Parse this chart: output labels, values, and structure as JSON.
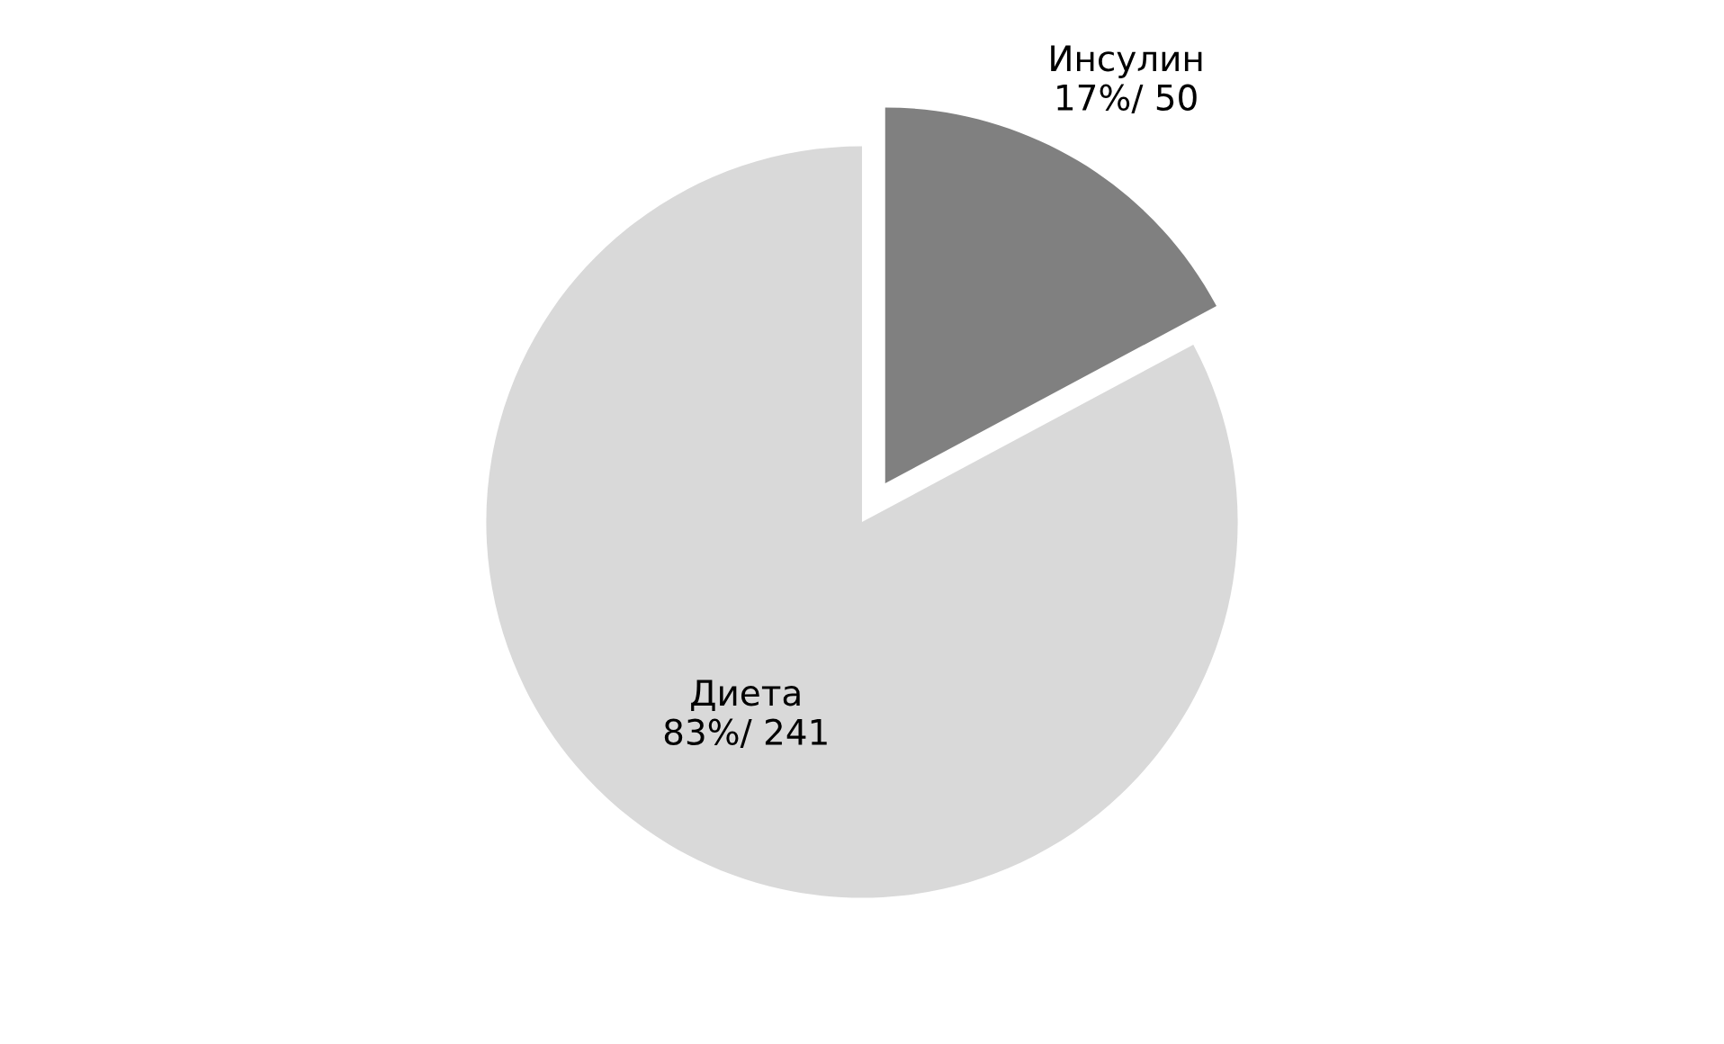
{
  "chart_data": {
    "type": "pie",
    "categories": [
      "Инсулин",
      "Диета"
    ],
    "values": [
      50,
      241
    ],
    "colors": [
      "#808080",
      "#d9d9d9"
    ],
    "value_labels": [
      "17%/ 50",
      "83%/ 241"
    ]
  }
}
